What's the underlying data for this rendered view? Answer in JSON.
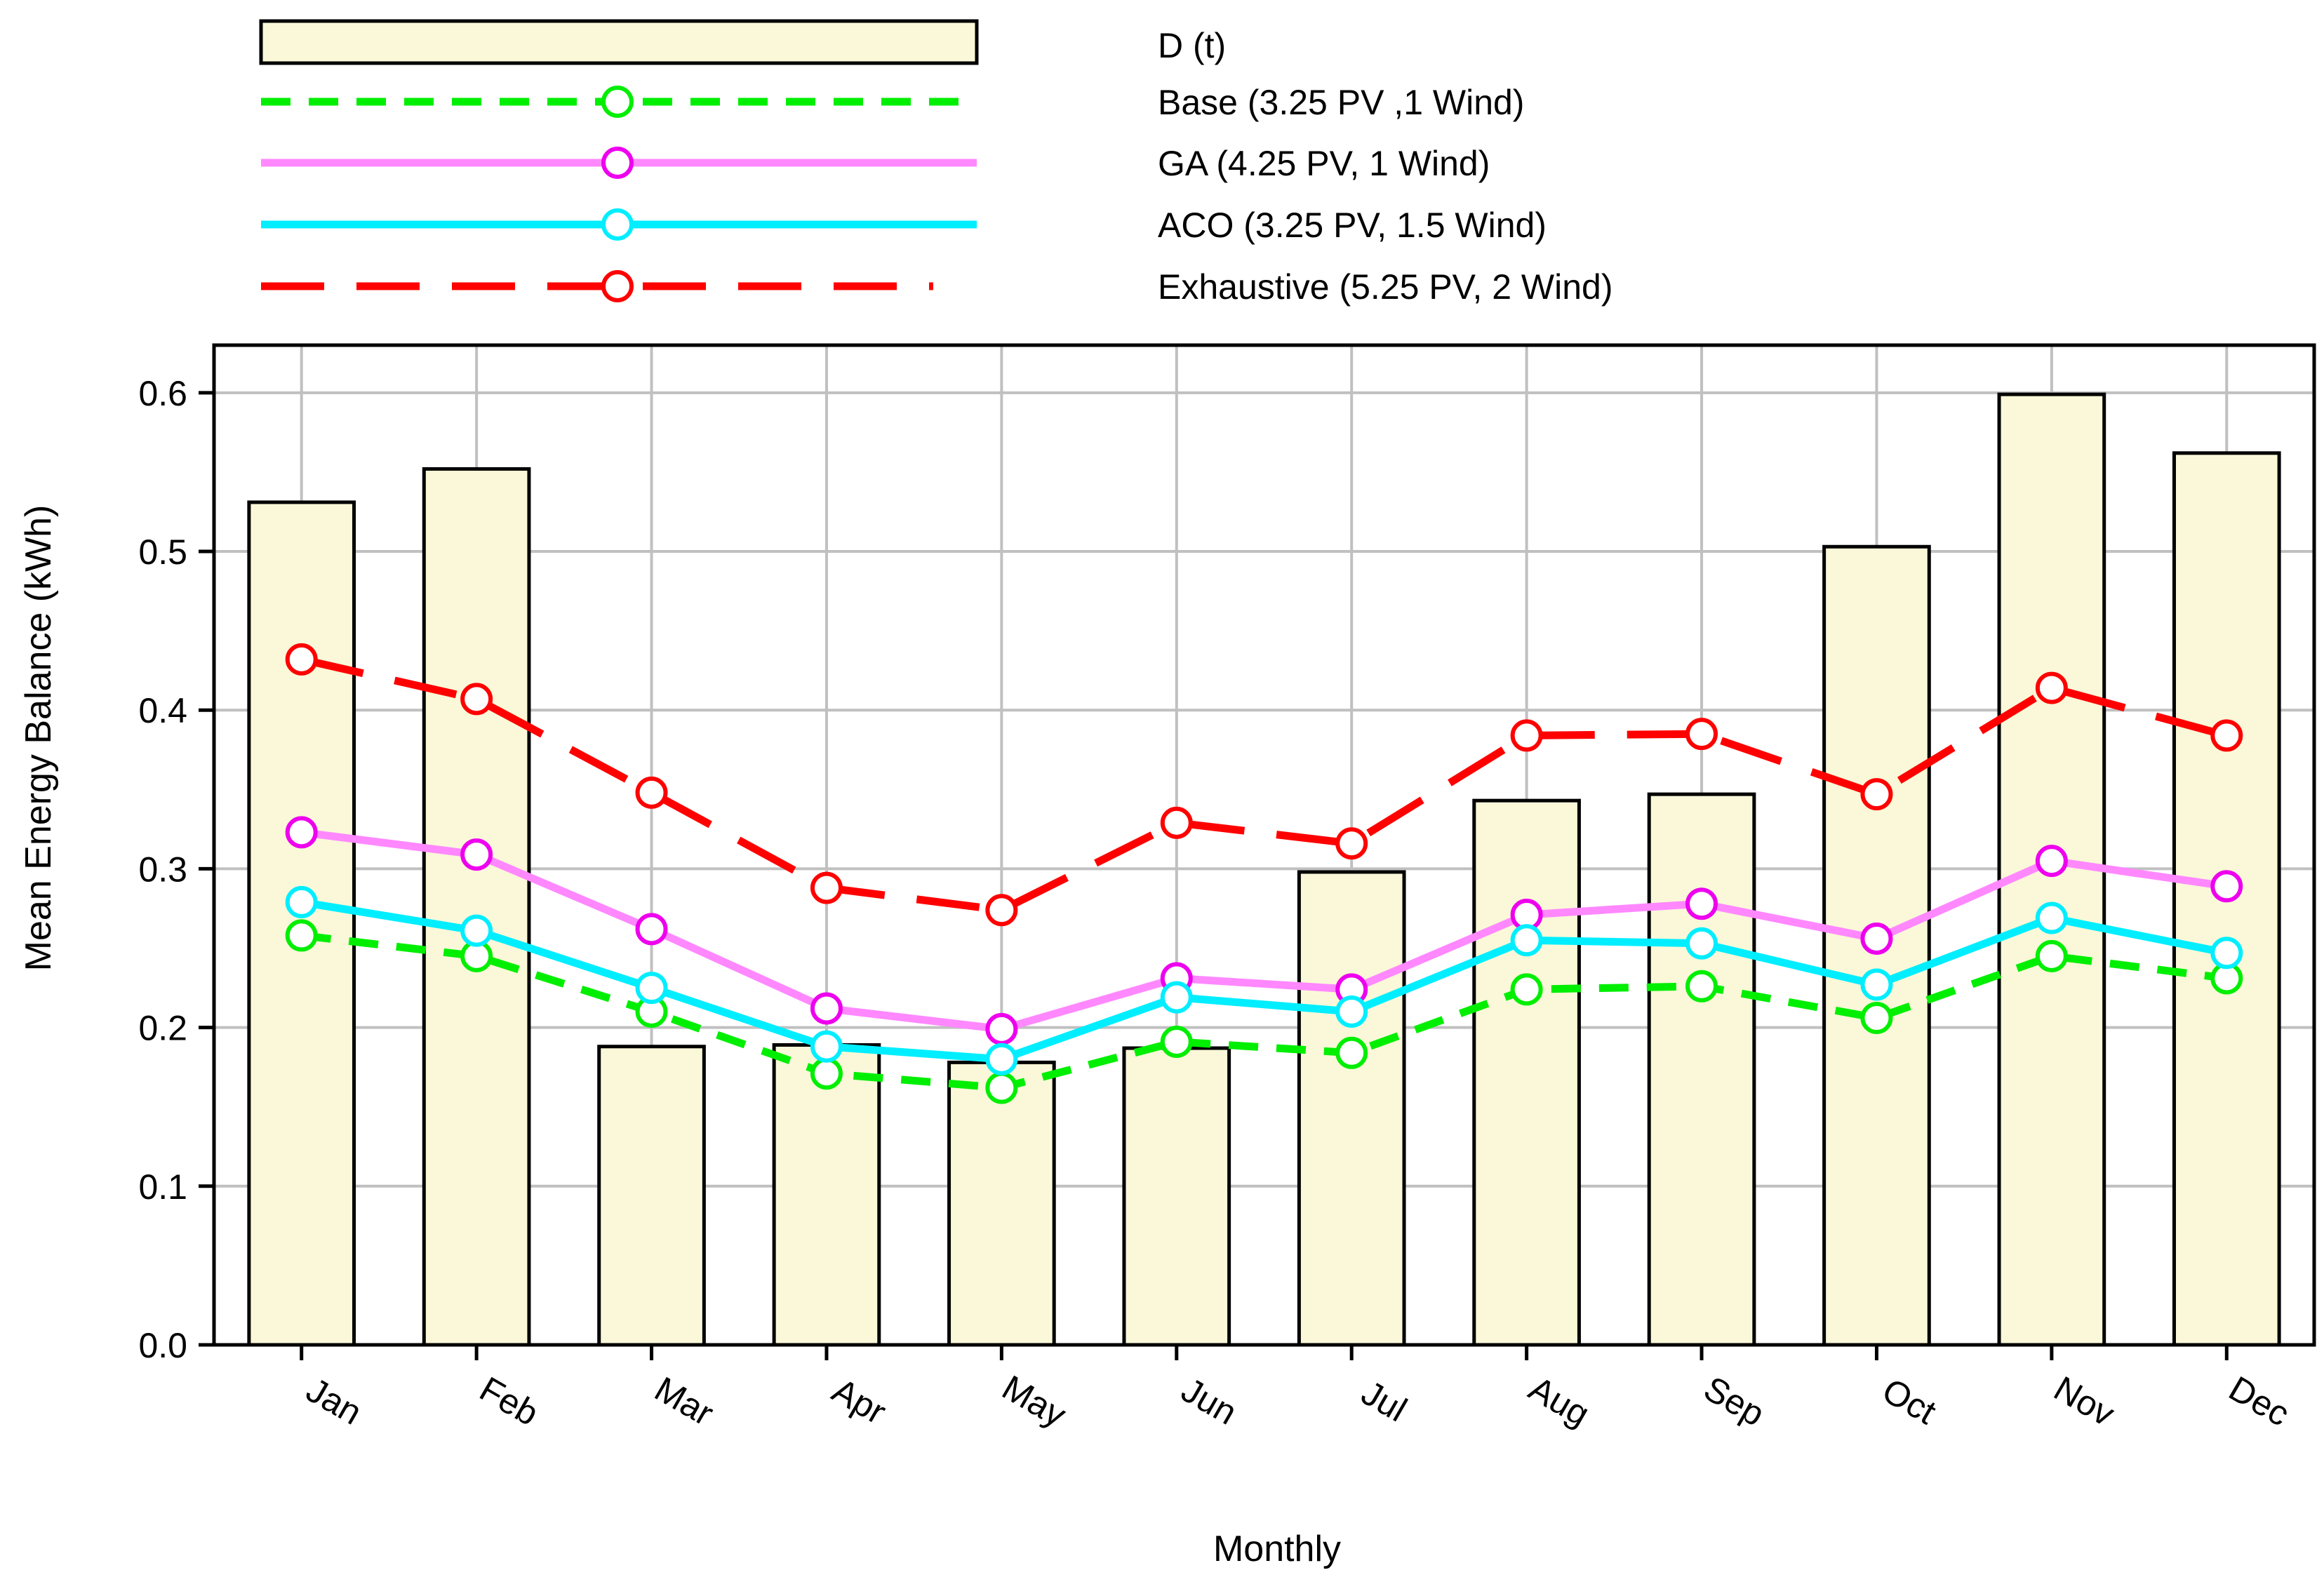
{
  "chart_data": {
    "type": "bar+line",
    "title": "",
    "xlabel": "Monthly",
    "ylabel": "Mean Energy Balance (kWh)",
    "ylim": [
      0,
      0.63
    ],
    "yticks": [
      "0.0",
      "0.1",
      "0.2",
      "0.3",
      "0.4",
      "0.5",
      "0.6"
    ],
    "grid": true,
    "legend_position": "top",
    "categories": [
      "Jan",
      "Feb",
      "Mar",
      "Apr",
      "May",
      "Jun",
      "Jul",
      "Aug",
      "Sep",
      "Oct",
      "Nov",
      "Dec"
    ],
    "bars": {
      "name": "D (t)",
      "color": "#faf8d8",
      "values": [
        0.531,
        0.552,
        0.188,
        0.189,
        0.178,
        0.187,
        0.298,
        0.343,
        0.347,
        0.503,
        0.599,
        0.562
      ]
    },
    "series": [
      {
        "name": "Base (3.25 PV ,1 Wind)",
        "color": "#00ee00",
        "style": "short-dash",
        "values": [
          0.258,
          0.245,
          0.21,
          0.171,
          0.162,
          0.191,
          0.184,
          0.224,
          0.226,
          0.206,
          0.245,
          0.231
        ]
      },
      {
        "name": "GA (4.25 PV, 1 Wind)",
        "color": "#ff88ff",
        "marker_color": "#ee00ee",
        "style": "solid",
        "values": [
          0.323,
          0.309,
          0.262,
          0.212,
          0.199,
          0.231,
          0.224,
          0.271,
          0.278,
          0.256,
          0.305,
          0.289
        ]
      },
      {
        "name": "ACO (3.25 PV, 1.5 Wind)",
        "color": "#00eeff",
        "style": "solid",
        "values": [
          0.279,
          0.261,
          0.225,
          0.188,
          0.18,
          0.219,
          0.21,
          0.255,
          0.253,
          0.227,
          0.269,
          0.247
        ]
      },
      {
        "name": "Exhaustive (5.25 PV, 2 Wind)",
        "color": "#ff0000",
        "style": "long-dash",
        "values": [
          0.432,
          0.407,
          0.348,
          0.288,
          0.274,
          0.329,
          0.316,
          0.384,
          0.385,
          0.347,
          0.414,
          0.384
        ]
      }
    ]
  }
}
